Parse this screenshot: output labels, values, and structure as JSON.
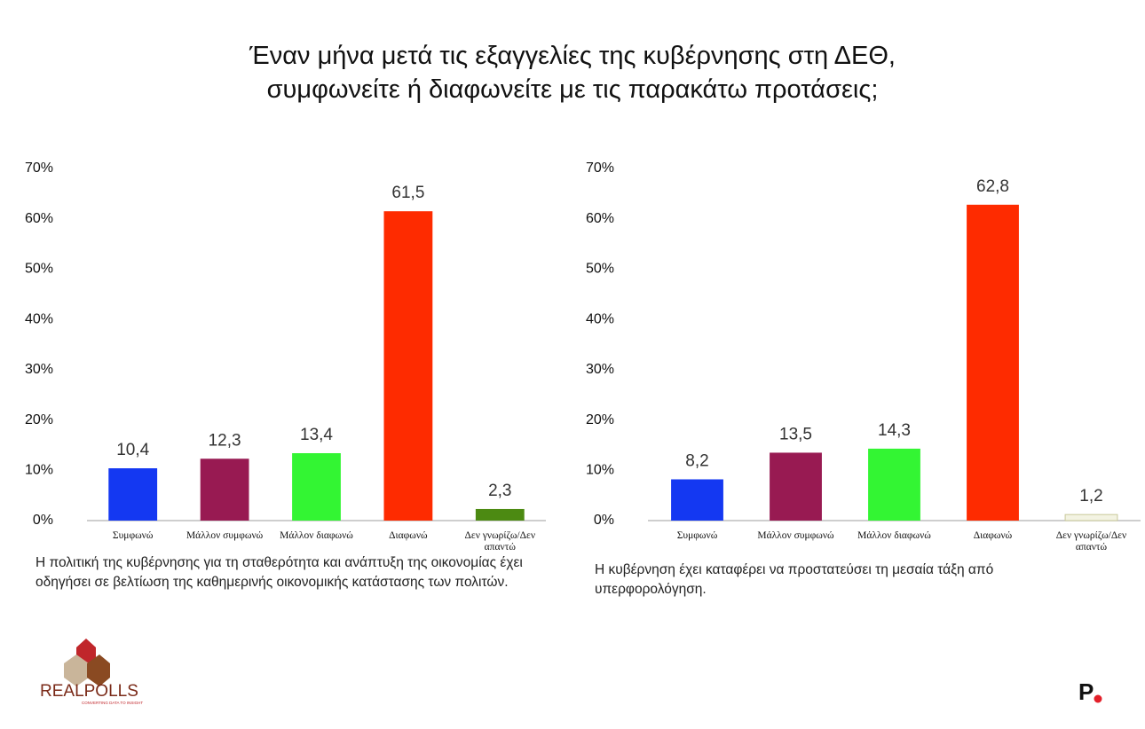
{
  "title": "Έναν μήνα μετά τις εξαγγελίες της κυβέρνησης στη ΔΕΘ,\nσυμφωνείτε ή διαφωνείτε με τις παρακάτω προτάσεις;",
  "brand": "REALPOLLS",
  "tagline": "CONVERTING DATA TO INSIGHT",
  "publisher_logo": "P",
  "chart_data": [
    {
      "type": "bar",
      "categories": [
        "Συμφωνώ",
        "Μάλλον συμφωνώ",
        "Μάλλον διαφωνώ",
        "Διαφωνώ",
        "Δεν γνωρίζω/Δεν απαντώ"
      ],
      "values": [
        10.4,
        12.3,
        13.4,
        61.5,
        2.3
      ],
      "value_labels": [
        "10,4",
        "12,3",
        "13,4",
        "61,5",
        "2,3"
      ],
      "colors": [
        "#1438f2",
        "#981a52",
        "#33f533",
        "#fe2b00",
        "#4c8a12"
      ],
      "ylim": [
        0,
        70
      ],
      "yticks": [
        {
          "value": 0,
          "label": "0%"
        },
        {
          "value": 10,
          "label": "10%"
        },
        {
          "value": 20,
          "label": "20%"
        },
        {
          "value": 30,
          "label": "30%"
        },
        {
          "value": 40,
          "label": "40%"
        },
        {
          "value": 50,
          "label": "50%"
        },
        {
          "value": 60,
          "label": "60%"
        },
        {
          "value": 70,
          "label": "70%"
        }
      ],
      "caption": "Η πολιτική της κυβέρνησης για τη σταθερότητα και ανάπτυξη της οικονομίας έχει οδηγήσει σε βελτίωση της καθημερινής οικονομικής κατάστασης των πολιτών."
    },
    {
      "type": "bar",
      "categories": [
        "Συμφωνώ",
        "Μάλλον συμφωνώ",
        "Μάλλον διαφωνώ",
        "Διαφωνώ",
        "Δεν γνωρίζω/Δεν απαντώ"
      ],
      "values": [
        8.2,
        13.5,
        14.3,
        62.8,
        1.2
      ],
      "value_labels": [
        "8,2",
        "13,5",
        "14,3",
        "62,8",
        "1,2"
      ],
      "colors": [
        "#1438f2",
        "#981a52",
        "#33f533",
        "#fe2b00",
        "#f3f3e2"
      ],
      "ylim": [
        0,
        70
      ],
      "yticks": [
        {
          "value": 0,
          "label": "0%"
        },
        {
          "value": 10,
          "label": "10%"
        },
        {
          "value": 20,
          "label": "20%"
        },
        {
          "value": 30,
          "label": "30%"
        },
        {
          "value": 40,
          "label": "40%"
        },
        {
          "value": 50,
          "label": "50%"
        },
        {
          "value": 60,
          "label": "60%"
        },
        {
          "value": 70,
          "label": "70%"
        }
      ],
      "caption": "Η κυβέρνηση έχει καταφέρει να προστατεύσει τη μεσαία τάξη από υπερφορολόγηση."
    }
  ]
}
